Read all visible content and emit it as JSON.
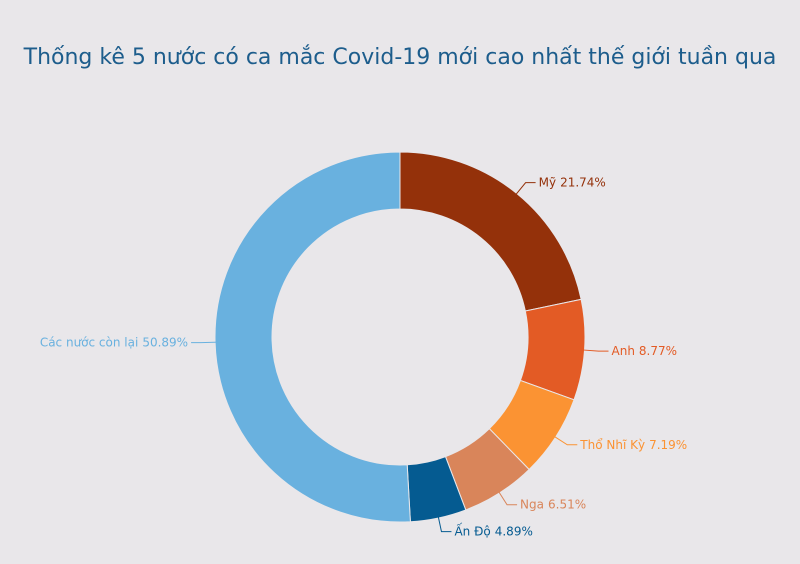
{
  "chart_data": {
    "type": "pie",
    "title": "Thống kê 5 nước có ca mắc Covid-19 mới cao nhất thế giới tuần qua",
    "categories": [
      "Mỹ",
      "Anh",
      "Thổ Nhĩ Kỳ",
      "Nga",
      "Ấn Độ",
      "Các nước còn lại"
    ],
    "values": [
      21.74,
      8.77,
      7.19,
      6.51,
      4.89,
      50.89
    ],
    "value_labels": [
      "21.74%",
      "8.77%",
      "7.19%",
      "6.51%",
      "4.89%",
      "50.89%"
    ],
    "colors": [
      "#94310a",
      "#e35b25",
      "#fb9333",
      "#d9855a",
      "#055b91",
      "#69b1df"
    ]
  }
}
